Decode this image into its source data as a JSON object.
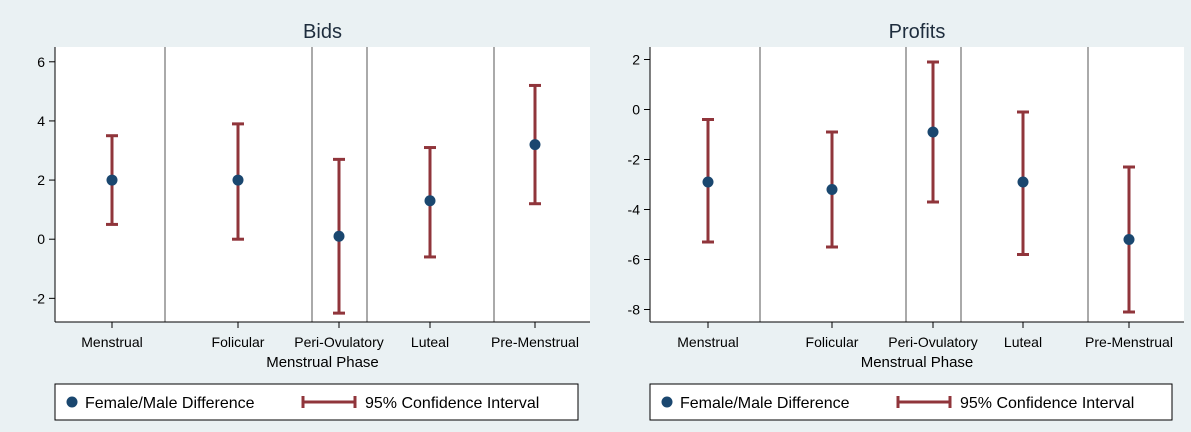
{
  "colors": {
    "background": "#eaf1f3",
    "plot_bg": "#ffffff",
    "point": "#1a476f",
    "ci": "#90353b",
    "axis": "#000000",
    "divider": "#555555"
  },
  "legend": {
    "point_label": "Female/Male Difference",
    "ci_label": "95% Confidence Interval"
  },
  "chart_data": [
    {
      "type": "scatter",
      "title": "Bids",
      "xlabel": "Menstrual Phase",
      "ylabel": "",
      "categories": [
        "Menstrual",
        "Folicular",
        "Peri-Ovulatory",
        "Luteal",
        "Pre-Menstrual"
      ],
      "ylim": [
        -2.8,
        6.5
      ],
      "yticks": [
        -2,
        0,
        2,
        4,
        6
      ],
      "grid": false,
      "legend_position": "bottom",
      "series": [
        {
          "name": "Female/Male Difference",
          "values": [
            2.0,
            2.0,
            0.1,
            1.3,
            3.2
          ]
        },
        {
          "name": "95% Confidence Interval",
          "lower": [
            0.5,
            0.0,
            -2.5,
            -0.6,
            1.2
          ],
          "upper": [
            3.5,
            3.9,
            2.7,
            3.1,
            5.2
          ]
        }
      ]
    },
    {
      "type": "scatter",
      "title": "Profits",
      "xlabel": "Menstrual Phase",
      "ylabel": "",
      "categories": [
        "Menstrual",
        "Folicular",
        "Peri-Ovulatory",
        "Luteal",
        "Pre-Menstrual"
      ],
      "ylim": [
        -8.5,
        2.5
      ],
      "yticks": [
        -8,
        -6,
        -4,
        -2,
        0,
        2
      ],
      "grid": false,
      "legend_position": "bottom",
      "series": [
        {
          "name": "Female/Male Difference",
          "values": [
            -2.9,
            -3.2,
            -0.9,
            -2.9,
            -5.2
          ]
        },
        {
          "name": "95% Confidence Interval",
          "lower": [
            -5.3,
            -5.5,
            -3.7,
            -5.8,
            -8.1
          ],
          "upper": [
            -0.4,
            -0.9,
            1.9,
            -0.1,
            -2.3
          ]
        }
      ]
    }
  ]
}
